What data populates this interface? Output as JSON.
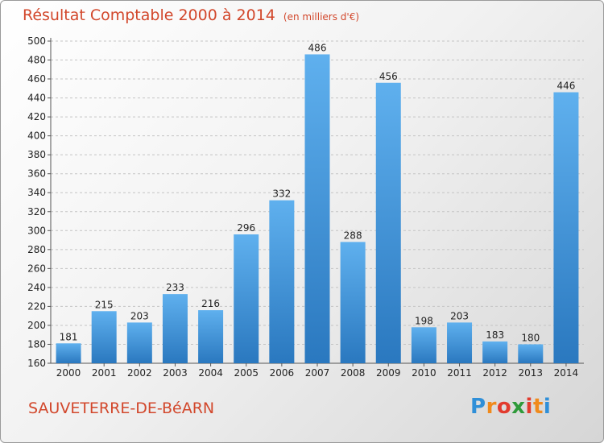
{
  "chart_data": {
    "type": "bar",
    "title": "Résultat Comptable 2000 à 2014",
    "subtitle": "(en milliers d'€)",
    "categories": [
      "2000",
      "2001",
      "2002",
      "2003",
      "2004",
      "2005",
      "2006",
      "2007",
      "2008",
      "2009",
      "2010",
      "2011",
      "2012",
      "2013",
      "2014"
    ],
    "values": [
      181,
      215,
      203,
      233,
      216,
      296,
      332,
      486,
      288,
      456,
      198,
      203,
      183,
      180,
      446
    ],
    "ylim": [
      160,
      500
    ],
    "ytick_step": 20,
    "xlabel": "",
    "ylabel": "",
    "grid": true,
    "bar_color": "#3d8fd6"
  },
  "commune": "SAUVETERRE-DE-BéARN",
  "logo": {
    "letters": [
      "P",
      "r",
      "o",
      "x",
      "i",
      "t",
      "i"
    ],
    "colors": [
      "#2f8fd8",
      "#f08a1c",
      "#e23b2e",
      "#2f9a3a",
      "#e23b2e",
      "#f08a1c",
      "#2f8fd8"
    ]
  }
}
